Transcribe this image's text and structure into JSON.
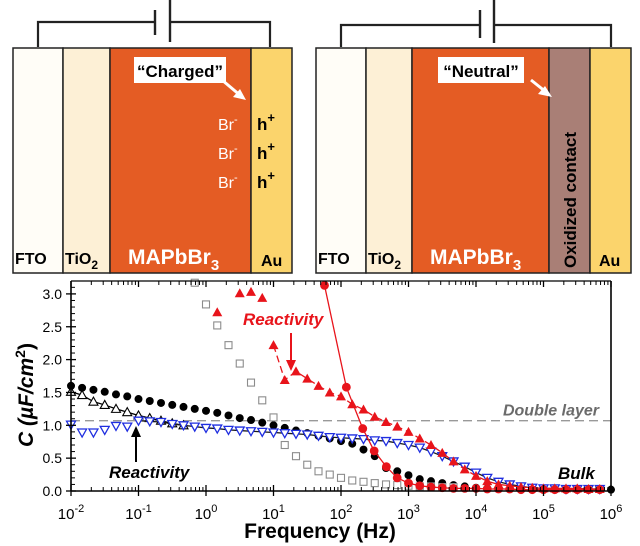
{
  "schematics": [
    {
      "id": "charged",
      "callout": "“Charged”",
      "layers": [
        {
          "name": "FTO",
          "color": "#fffdf7",
          "text_color": "#000000"
        },
        {
          "name": "TiO",
          "sub": "2",
          "color": "#fdf0d6",
          "text_color": "#000000"
        },
        {
          "name": "MAPbBr",
          "sub": "3",
          "color": "#e45c24",
          "text_color": "#ffffff"
        },
        {
          "name": "Au",
          "color": "#fbd46c",
          "text_color": "#000000"
        }
      ],
      "ions": [
        {
          "anion": "Br",
          "anion_sup": "-",
          "hole": "h",
          "hole_sup": "+"
        },
        {
          "anion": "Br",
          "anion_sup": "-",
          "hole": "h",
          "hole_sup": "+"
        },
        {
          "anion": "Br",
          "anion_sup": "-",
          "hole": "h",
          "hole_sup": "+"
        }
      ]
    },
    {
      "id": "neutral",
      "callout": "“Neutral”",
      "layers": [
        {
          "name": "FTO",
          "color": "#fffdf7",
          "text_color": "#000000"
        },
        {
          "name": "TiO",
          "sub": "2",
          "color": "#fdf0d6",
          "text_color": "#000000"
        },
        {
          "name": "MAPbBr",
          "sub": "3",
          "color": "#e45c24",
          "text_color": "#ffffff"
        },
        {
          "name": "Oxidized contact",
          "color": "#a97f76",
          "text_color": "#000000"
        },
        {
          "name": "Au",
          "color": "#fbd46c",
          "text_color": "#000000"
        }
      ]
    }
  ],
  "chart_data": {
    "type": "scatter",
    "xscale": "log",
    "xlim": [
      0.01,
      1000000
    ],
    "ylim": [
      0,
      3.2
    ],
    "xlabel": "Frequency (Hz)",
    "ylabel": "C (µF/cm²)",
    "ylabel_parts": {
      "base": "C (µF/cm",
      "sup": "2",
      "end": ")"
    },
    "xticks": [
      {
        "base": "10",
        "exp": "-2",
        "value": 0.01
      },
      {
        "base": "10",
        "exp": "-1",
        "value": 0.1
      },
      {
        "base": "10",
        "exp": "0",
        "value": 1
      },
      {
        "base": "10",
        "exp": "1",
        "value": 10
      },
      {
        "base": "10",
        "exp": "2",
        "value": 100
      },
      {
        "base": "10",
        "exp": "3",
        "value": 1000
      },
      {
        "base": "10",
        "exp": "4",
        "value": 10000
      },
      {
        "base": "10",
        "exp": "5",
        "value": 100000
      },
      {
        "base": "10",
        "exp": "6",
        "value": 1000000
      }
    ],
    "yticks": [
      "0.0",
      "0.5",
      "1.0",
      "1.5",
      "2.0",
      "2.5",
      "3.0"
    ],
    "reference_line": {
      "label": "Double layer",
      "y": 1.07,
      "color": "#999999"
    },
    "annotations": [
      {
        "text": "Reactivity",
        "color": "#e8141b",
        "x": 20,
        "y": 2.6
      },
      {
        "text": "Reactivity",
        "color": "#000000",
        "x": 0.1,
        "y": 0.28
      },
      {
        "text": "Bulk",
        "color": "#000000",
        "x": 250000,
        "y": 0.2
      }
    ],
    "series": [
      {
        "name": "black filled circles",
        "marker": "circle-filled",
        "color": "#000000",
        "line": false,
        "x": [
          0.01,
          0.0146,
          0.0215,
          0.0316,
          0.0464,
          0.0681,
          0.1,
          0.1468,
          0.2154,
          0.3162,
          0.4642,
          0.6813,
          1,
          1.468,
          2.154,
          3.162,
          4.642,
          6.813,
          10,
          14.68,
          21.54,
          31.62,
          46.42,
          68.13,
          100,
          146.8,
          215.4,
          316.2,
          464.2,
          681.3,
          1000,
          1468,
          2154,
          3162,
          4642,
          6813,
          10000,
          14680,
          21540,
          31620,
          46420,
          68130,
          100000,
          146800,
          215400,
          316200,
          464200,
          681300,
          1000000
        ],
        "y": [
          1.6,
          1.57,
          1.54,
          1.51,
          1.47,
          1.44,
          1.4,
          1.37,
          1.34,
          1.31,
          1.28,
          1.25,
          1.22,
          1.19,
          1.15,
          1.11,
          1.08,
          1.04,
          1.0,
          0.96,
          0.92,
          0.88,
          0.84,
          0.8,
          0.76,
          0.72,
          0.63,
          0.53,
          0.35,
          0.3,
          0.24,
          0.18,
          0.15,
          0.12,
          0.09,
          0.07,
          0.05,
          0.04,
          0.04,
          0.03,
          0.03,
          0.03,
          0.03,
          0.03,
          0.03,
          0.03,
          0.02,
          0.02,
          0.02
        ]
      },
      {
        "name": "black open triangles",
        "marker": "triangle-open",
        "color": "#000000",
        "line": true,
        "x": [
          0.01,
          0.0146,
          0.0215,
          0.0316,
          0.0464,
          0.0681,
          0.1,
          0.1468,
          0.2154,
          0.3162,
          0.4642
        ],
        "y": [
          1.51,
          1.46,
          1.36,
          1.31,
          1.25,
          1.2,
          1.15,
          1.11,
          1.07,
          1.03,
          1.0
        ]
      },
      {
        "name": "blue open inverted triangles",
        "marker": "triangle-down-open",
        "color": "#1f2ee0",
        "line": true,
        "x": [
          0.01,
          0.0146,
          0.0215,
          0.0316,
          0.0464,
          0.0681,
          0.1,
          0.1468,
          0.2154,
          0.3162,
          0.4642,
          0.6813,
          1,
          1.468,
          2.154,
          3.162,
          4.642,
          6.813,
          10,
          14.68,
          21.54,
          31.62,
          46.42,
          68.13,
          100,
          146.8,
          215.4,
          316.2,
          464.2,
          681.3,
          1000,
          1468,
          2154,
          3162,
          4642,
          6813,
          10000,
          14680,
          21540,
          31620,
          46420,
          68130,
          100000,
          146800,
          215400,
          316200,
          464200,
          681300
        ],
        "y": [
          1.01,
          0.89,
          0.89,
          0.93,
          0.99,
          0.98,
          1.07,
          1.06,
          1.05,
          1.02,
          1.0,
          0.98,
          0.96,
          0.95,
          0.93,
          0.92,
          0.91,
          0.9,
          0.89,
          0.88,
          0.87,
          0.86,
          0.84,
          0.82,
          0.81,
          0.8,
          0.79,
          0.77,
          0.76,
          0.73,
          0.7,
          0.66,
          0.6,
          0.53,
          0.45,
          0.37,
          0.28,
          0.2,
          0.14,
          0.1,
          0.07,
          0.05,
          0.04,
          0.04,
          0.03,
          0.03,
          0.03,
          0.03
        ]
      },
      {
        "name": "gray open squares",
        "marker": "square-open",
        "color": "#8c8c8c",
        "line": false,
        "x": [
          0.6813,
          1,
          1.468,
          2.154,
          3.162,
          4.642,
          6.813,
          10,
          14.68,
          21.54,
          31.62,
          46.42,
          68.13,
          100,
          146.8,
          215.4,
          316.2,
          464.2,
          681.3,
          1000,
          1468,
          2154,
          3162,
          4642
        ],
        "y": [
          3.17,
          2.84,
          2.52,
          2.22,
          1.94,
          1.65,
          1.38,
          1.12,
          0.7,
          0.53,
          0.4,
          0.3,
          0.25,
          0.2,
          0.16,
          0.14,
          0.12,
          0.1,
          0.09,
          0.08,
          0.07,
          0.07,
          0.06,
          0.06
        ]
      },
      {
        "name": "red filled triangles",
        "marker": "triangle-filled",
        "color": "#e8141b",
        "line": "dashed",
        "x": [
          1.468,
          3.162,
          4.642,
          6.813,
          10,
          14.68,
          21.54,
          31.62,
          46.42,
          68.13,
          100,
          146.8,
          215.4,
          316.2,
          464.2,
          681.3,
          1000,
          1468,
          2154,
          3162,
          4642,
          6813,
          10000,
          14680,
          21540,
          31620,
          46420,
          68130,
          100000,
          146800,
          215400,
          316200,
          464200,
          681300
        ],
        "y": [
          2.72,
          3.01,
          3.03,
          2.94,
          2.22,
          1.69,
          1.82,
          1.71,
          1.6,
          1.5,
          1.44,
          1.32,
          1.24,
          1.13,
          1.05,
          0.98,
          0.9,
          0.8,
          0.7,
          0.58,
          0.45,
          0.33,
          0.23,
          0.15,
          0.1,
          0.08,
          0.06,
          0.05,
          0.04,
          0.04,
          0.04,
          0.04,
          0.03,
          0.03
        ]
      },
      {
        "name": "red filled circles",
        "marker": "circle-filled",
        "color": "#e8141b",
        "line": true,
        "x": [
          57,
          120,
          210,
          310,
          470,
          680,
          1000,
          1468,
          2154,
          3162,
          4642,
          6813,
          10000,
          14680,
          21540,
          31620,
          46420,
          68130,
          100000,
          146800,
          215400,
          316200,
          464200,
          681300
        ],
        "y": [
          3.13,
          1.58,
          0.95,
          0.61,
          0.37,
          0.2,
          0.12,
          0.08,
          0.06,
          0.05,
          0.04,
          0.04,
          0.04,
          0.03,
          0.03,
          0.03,
          0.02,
          0.02,
          0.02,
          0.02,
          0.02,
          0.02,
          0.02,
          0.02
        ]
      }
    ]
  }
}
